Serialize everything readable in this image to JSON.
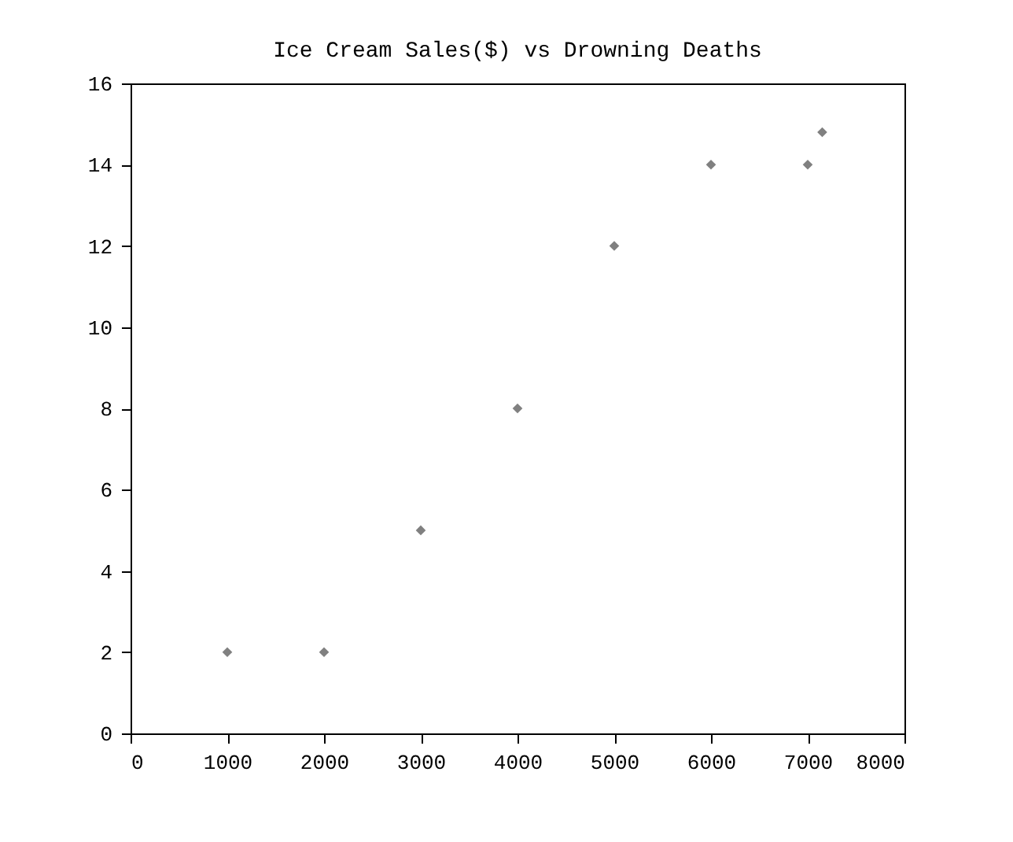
{
  "chart_data": {
    "type": "scatter",
    "title": "Ice Cream Sales($) vs Drowning Deaths",
    "x": [
      1000,
      2000,
      3000,
      4000,
      5000,
      6000,
      7000,
      7150
    ],
    "series": [
      {
        "color": "#808080",
        "values": [
          2,
          2,
          5,
          8,
          12,
          14,
          14,
          14.8
        ]
      }
    ],
    "xlim": [
      0,
      8000
    ],
    "xticks": [
      0,
      1000,
      2000,
      3000,
      4000,
      5000,
      6000,
      7000,
      8000
    ],
    "ylim": [
      0,
      16
    ],
    "yticks": [
      0,
      2,
      4,
      6,
      8,
      10,
      12,
      14,
      16
    ],
    "marker": "diamond",
    "grid": false
  }
}
